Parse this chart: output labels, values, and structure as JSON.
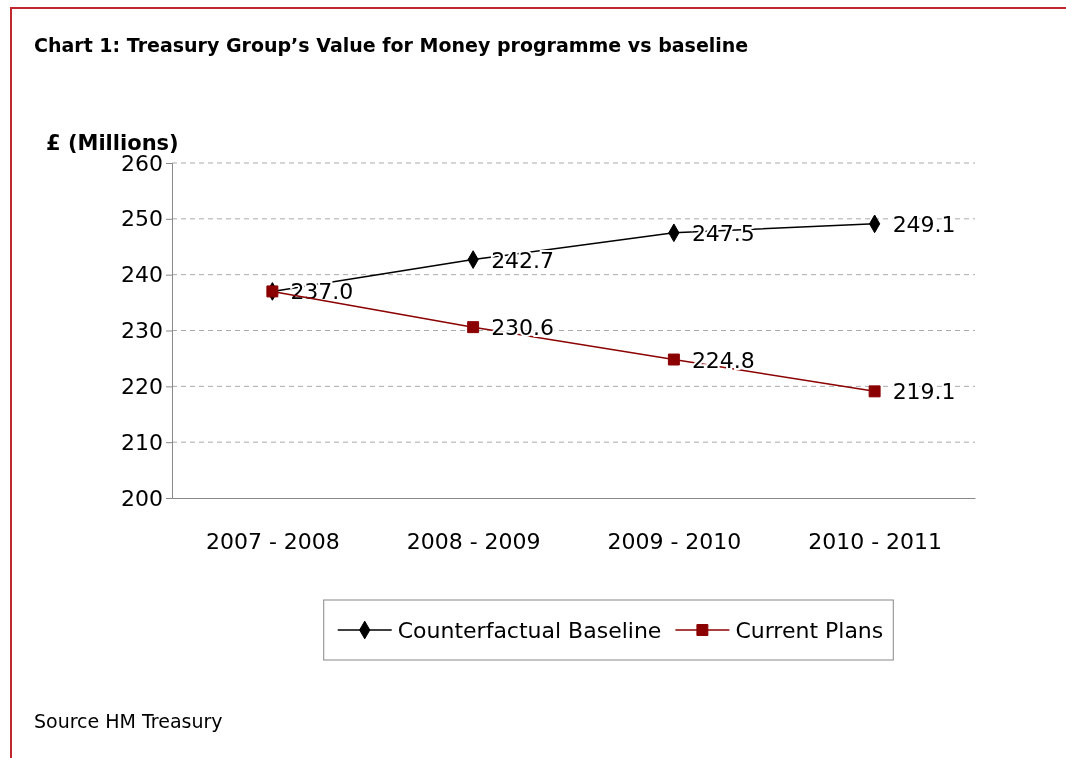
{
  "chart_data": {
    "type": "line",
    "title": "Chart 1: Treasury Group’s Value for Money programme vs baseline",
    "ylabel": "£ (Millions)",
    "categories": [
      "2007 - 2008",
      "2008 - 2009",
      "2009 - 2010",
      "2010 - 2011"
    ],
    "series": [
      {
        "name": "Counterfactual Baseline",
        "color": "#000000",
        "marker": "diamond",
        "values": [
          237.0,
          242.7,
          247.5,
          249.1
        ],
        "value_labels": [
          "237.0",
          "242.7",
          "247.5",
          "249.1"
        ]
      },
      {
        "name": "Current Plans",
        "color": "#8b0000",
        "marker": "square",
        "values": [
          237.0,
          230.6,
          224.8,
          219.1
        ],
        "value_labels": [
          null,
          "230.6",
          "224.8",
          "219.1"
        ]
      }
    ],
    "ylim": [
      200,
      260
    ],
    "yticks": [
      200,
      210,
      220,
      230,
      240,
      250,
      260
    ],
    "grid": "y",
    "legend": "bottom",
    "annotations": [
      "Source HM Treasury"
    ]
  }
}
